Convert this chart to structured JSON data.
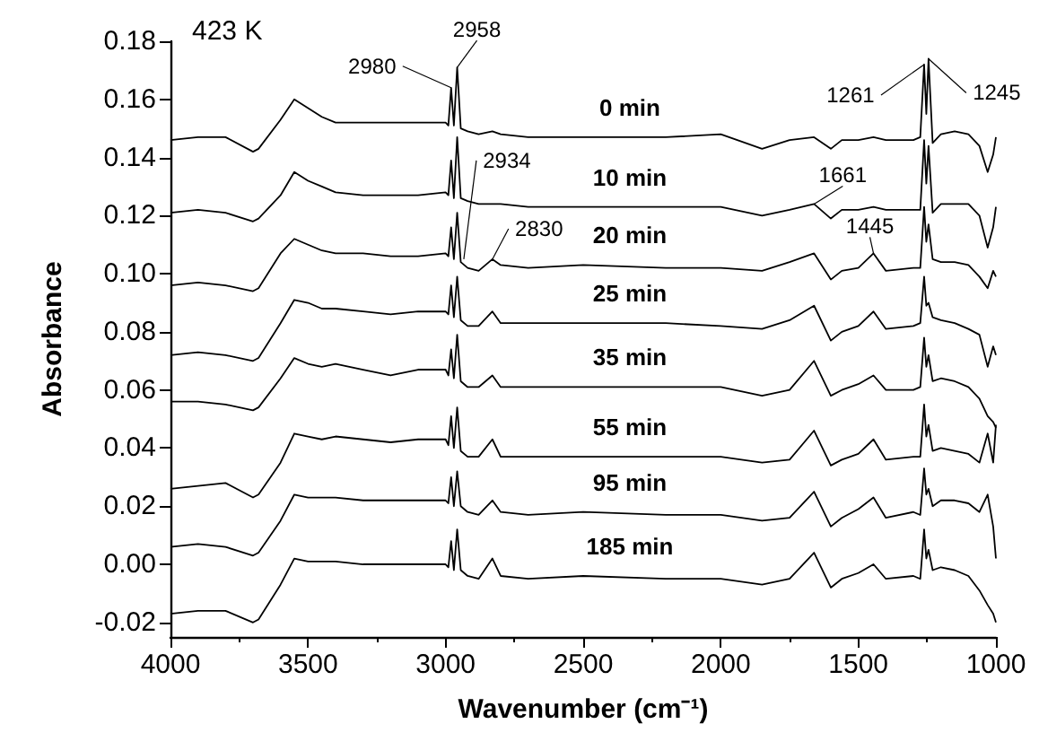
{
  "chart_data": {
    "type": "line",
    "xlabel": "Wavenumber (cm⁻¹)",
    "ylabel": "Absorbance",
    "xlim": [
      4000,
      1000
    ],
    "xticks": [
      4000,
      3500,
      3000,
      2500,
      2000,
      1500,
      1000
    ],
    "ylim": [
      -0.025,
      0.18
    ],
    "yticks": [
      -0.02,
      {
        "value": 0,
        "label": "0.00"
      },
      0.02,
      0.04,
      0.06,
      0.08,
      {
        "value": 0.1,
        "label": "0.10"
      },
      0.12,
      0.14,
      0.16,
      0.18
    ],
    "grid": false,
    "legend": false,
    "marker": "none",
    "x": [
      4000,
      3900,
      3800,
      3700,
      3680,
      3600,
      3550,
      3500,
      3450,
      3400,
      3300,
      3200,
      3100,
      3000,
      2990,
      2980,
      2970,
      2958,
      2945,
      2920,
      2880,
      2830,
      2800,
      2700,
      2500,
      2200,
      2000,
      1850,
      1750,
      1661,
      1600,
      1560,
      1500,
      1445,
      1400,
      1300,
      1275,
      1261,
      1253,
      1245,
      1230,
      1200,
      1150,
      1100,
      1060,
      1030,
      1010,
      1000
    ],
    "series": [
      {
        "name": "0 min",
        "color": "#000000",
        "values": [
          0.146,
          0.147,
          0.147,
          0.142,
          0.143,
          0.153,
          0.16,
          0.157,
          0.154,
          0.152,
          0.152,
          0.152,
          0.152,
          0.152,
          0.151,
          0.164,
          0.151,
          0.171,
          0.15,
          0.149,
          0.148,
          0.149,
          0.148,
          0.147,
          0.147,
          0.147,
          0.148,
          0.143,
          0.146,
          0.147,
          0.143,
          0.146,
          0.146,
          0.147,
          0.146,
          0.146,
          0.147,
          0.172,
          0.155,
          0.174,
          0.145,
          0.148,
          0.149,
          0.148,
          0.144,
          0.135,
          0.141,
          0.147
        ]
      },
      {
        "name": "10 min",
        "color": "#000000",
        "values": [
          0.121,
          0.122,
          0.121,
          0.118,
          0.119,
          0.127,
          0.135,
          0.132,
          0.13,
          0.128,
          0.127,
          0.127,
          0.127,
          0.128,
          0.127,
          0.139,
          0.126,
          0.147,
          0.126,
          0.125,
          0.124,
          0.124,
          0.124,
          0.123,
          0.123,
          0.123,
          0.123,
          0.12,
          0.122,
          0.124,
          0.119,
          0.122,
          0.122,
          0.123,
          0.122,
          0.122,
          0.122,
          0.146,
          0.131,
          0.144,
          0.121,
          0.124,
          0.124,
          0.124,
          0.12,
          0.109,
          0.116,
          0.123
        ]
      },
      {
        "name": "20 min",
        "color": "#000000",
        "values": [
          0.096,
          0.097,
          0.096,
          0.094,
          0.095,
          0.107,
          0.112,
          0.11,
          0.108,
          0.107,
          0.107,
          0.106,
          0.106,
          0.107,
          0.106,
          0.116,
          0.105,
          0.121,
          0.104,
          0.102,
          0.101,
          0.105,
          0.103,
          0.102,
          0.103,
          0.102,
          0.102,
          0.101,
          0.104,
          0.107,
          0.098,
          0.101,
          0.102,
          0.107,
          0.101,
          0.102,
          0.102,
          0.123,
          0.111,
          0.117,
          0.105,
          0.104,
          0.104,
          0.103,
          0.099,
          0.095,
          0.101,
          0.099
        ]
      },
      {
        "name": "25 min",
        "color": "#000000",
        "values": [
          0.072,
          0.073,
          0.072,
          0.07,
          0.071,
          0.083,
          0.091,
          0.09,
          0.088,
          0.088,
          0.087,
          0.086,
          0.087,
          0.087,
          0.086,
          0.096,
          0.085,
          0.099,
          0.084,
          0.082,
          0.082,
          0.087,
          0.083,
          0.083,
          0.083,
          0.083,
          0.082,
          0.081,
          0.084,
          0.089,
          0.077,
          0.08,
          0.082,
          0.087,
          0.081,
          0.082,
          0.083,
          0.099,
          0.089,
          0.09,
          0.085,
          0.084,
          0.083,
          0.081,
          0.079,
          0.068,
          0.075,
          0.072
        ]
      },
      {
        "name": "35 min",
        "color": "#000000",
        "values": [
          0.056,
          0.056,
          0.055,
          0.053,
          0.054,
          0.064,
          0.071,
          0.069,
          0.068,
          0.069,
          0.067,
          0.065,
          0.067,
          0.067,
          0.065,
          0.074,
          0.064,
          0.079,
          0.063,
          0.061,
          0.061,
          0.065,
          0.061,
          0.061,
          0.061,
          0.061,
          0.061,
          0.058,
          0.06,
          0.07,
          0.058,
          0.06,
          0.062,
          0.065,
          0.06,
          0.06,
          0.061,
          0.078,
          0.068,
          0.072,
          0.063,
          0.064,
          0.063,
          0.061,
          0.057,
          0.051,
          0.049,
          0.047
        ]
      },
      {
        "name": "55 min",
        "color": "#000000",
        "values": [
          0.026,
          0.027,
          0.028,
          0.023,
          0.024,
          0.035,
          0.045,
          0.044,
          0.043,
          0.044,
          0.043,
          0.042,
          0.043,
          0.043,
          0.041,
          0.051,
          0.04,
          0.054,
          0.039,
          0.037,
          0.037,
          0.043,
          0.037,
          0.037,
          0.037,
          0.037,
          0.037,
          0.035,
          0.036,
          0.046,
          0.034,
          0.036,
          0.038,
          0.043,
          0.036,
          0.037,
          0.037,
          0.055,
          0.044,
          0.048,
          0.039,
          0.04,
          0.039,
          0.038,
          0.035,
          0.045,
          0.035,
          0.048
        ]
      },
      {
        "name": "95 min",
        "color": "#000000",
        "values": [
          0.006,
          0.007,
          0.006,
          0.003,
          0.004,
          0.015,
          0.024,
          0.023,
          0.023,
          0.023,
          0.022,
          0.022,
          0.022,
          0.022,
          0.021,
          0.03,
          0.02,
          0.032,
          0.02,
          0.018,
          0.017,
          0.022,
          0.018,
          0.017,
          0.018,
          0.017,
          0.017,
          0.015,
          0.016,
          0.025,
          0.013,
          0.016,
          0.019,
          0.023,
          0.016,
          0.018,
          0.017,
          0.033,
          0.024,
          0.026,
          0.02,
          0.022,
          0.022,
          0.021,
          0.018,
          0.024,
          0.013,
          0.002
        ]
      },
      {
        "name": "185 min",
        "color": "#000000",
        "values": [
          -0.017,
          -0.016,
          -0.016,
          -0.02,
          -0.019,
          -0.007,
          0.002,
          0.001,
          0.001,
          0.001,
          0.0,
          0.0,
          0.0,
          0.0,
          -0.001,
          0.008,
          -0.002,
          0.012,
          -0.002,
          -0.004,
          -0.005,
          0.002,
          -0.004,
          -0.005,
          -0.004,
          -0.005,
          -0.005,
          -0.007,
          -0.005,
          0.004,
          -0.008,
          -0.005,
          -0.003,
          0.0,
          -0.005,
          -0.004,
          -0.005,
          0.012,
          0.002,
          0.005,
          -0.002,
          -0.001,
          -0.002,
          -0.004,
          -0.009,
          -0.014,
          -0.017,
          -0.02
        ]
      }
    ],
    "annotations": [
      "423 K",
      {
        "text": "2980",
        "x": 2980,
        "y": 0.164
      },
      {
        "text": "2958",
        "x": 2958,
        "y": 0.171
      },
      {
        "text": "2934",
        "x": 2934,
        "y": 0.105
      },
      {
        "text": "2830",
        "x": 2830,
        "y": 0.105
      },
      {
        "text": "1261",
        "x": 1261,
        "y": 0.172
      },
      {
        "text": "1245",
        "x": 1245,
        "y": 0.174
      },
      {
        "text": "1661",
        "x": 1661,
        "y": 0.124
      },
      {
        "text": "1445",
        "x": 1445,
        "y": 0.107
      }
    ]
  }
}
